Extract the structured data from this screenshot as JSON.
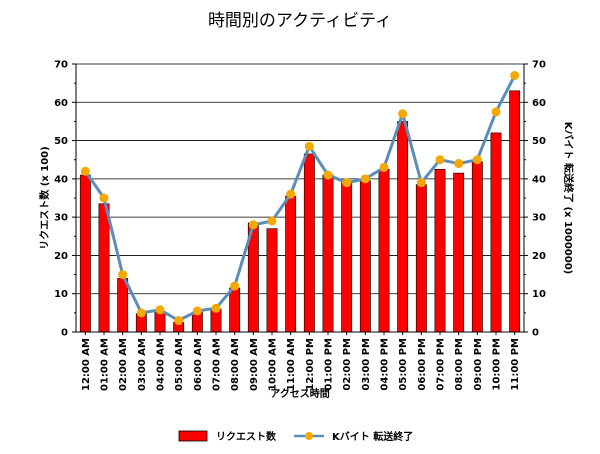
{
  "chart_data": {
    "type": "bar+line",
    "title": "時間別のアクティビティ",
    "xlabel": "アクセス時間",
    "ylabel_left": "リクエスト数 (x 100)",
    "ylabel_right": "Kバイト 転送終了 (x 1000000)",
    "ylim_left": [
      0,
      70
    ],
    "ylim_right": [
      0,
      70
    ],
    "yticks": [
      0,
      10,
      20,
      30,
      40,
      50,
      60,
      70
    ],
    "grid": "horizontal",
    "legend_position": "bottom",
    "categories": [
      "12:00 AM",
      "01:00 AM",
      "02:00 AM",
      "03:00 AM",
      "04:00 AM",
      "05:00 AM",
      "06:00 AM",
      "07:00 AM",
      "08:00 AM",
      "09:00 AM",
      "10:00 AM",
      "11:00 AM",
      "12:00 PM",
      "01:00 PM",
      "02:00 PM",
      "03:00 PM",
      "04:00 PM",
      "05:00 PM",
      "06:00 PM",
      "07:00 PM",
      "08:00 PM",
      "09:00 PM",
      "10:00 PM",
      "11:00 PM"
    ],
    "series": [
      {
        "name": "リクエスト数",
        "type": "bar",
        "axis": "left",
        "color": "#ff0000",
        "values": [
          41,
          33.5,
          14,
          4.8,
          5.2,
          2.5,
          5.2,
          6,
          11.5,
          28.5,
          27,
          35.5,
          46.5,
          41,
          39,
          39.5,
          42.5,
          55,
          38.5,
          42.5,
          41.5,
          44.5,
          52,
          63
        ]
      },
      {
        "name": "Kバイト 転送終了",
        "type": "line",
        "axis": "right",
        "color": "#5b8db8",
        "marker_color": "#f5a800",
        "values": [
          42,
          35,
          15,
          5,
          5.8,
          3,
          5.5,
          6.2,
          12,
          28,
          29,
          36,
          48.5,
          41,
          39,
          40,
          43,
          57,
          39,
          45,
          44,
          45,
          57.5,
          67
        ]
      }
    ]
  }
}
